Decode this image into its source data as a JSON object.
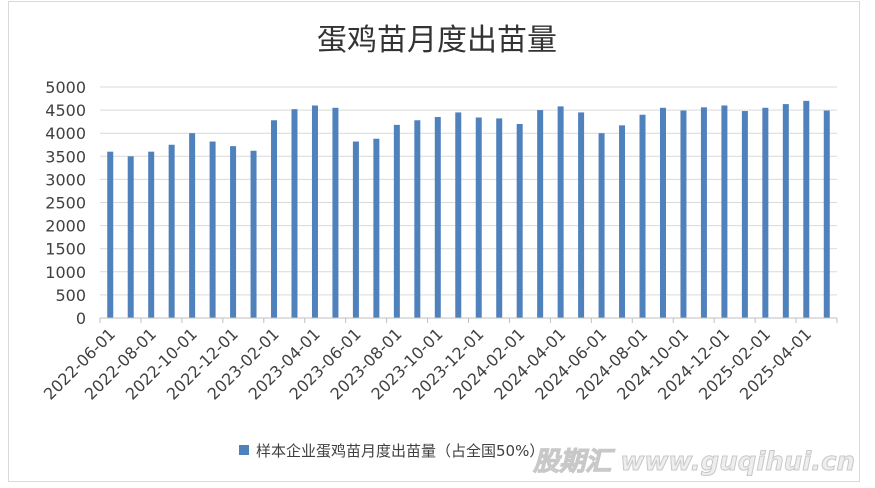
{
  "chart_data": {
    "type": "bar",
    "title": "蛋鸡苗月度出苗量",
    "xlabel": "",
    "ylabel": "",
    "ylim": [
      0,
      5000
    ],
    "yticks": [
      0,
      500,
      1000,
      1500,
      2000,
      2500,
      3000,
      3500,
      4000,
      4500,
      5000
    ],
    "xtick_labels": [
      "2022-06-01",
      "2022-08-01",
      "2022-10-01",
      "2022-12-01",
      "2023-02-01",
      "2023-04-01",
      "2023-06-01",
      "2023-08-01",
      "2023-10-01",
      "2023-12-01",
      "2024-02-01",
      "2024-04-01",
      "2024-06-01",
      "2024-08-01",
      "2024-10-01",
      "2024-12-01",
      "2025-02-01",
      "2025-04-01"
    ],
    "categories": [
      "2022-06-01",
      "2022-07-01",
      "2022-08-01",
      "2022-09-01",
      "2022-10-01",
      "2022-11-01",
      "2022-12-01",
      "2023-01-01",
      "2023-02-01",
      "2023-03-01",
      "2023-04-01",
      "2023-05-01",
      "2023-06-01",
      "2023-07-01",
      "2023-08-01",
      "2023-09-01",
      "2023-10-01",
      "2023-11-01",
      "2023-12-01",
      "2024-01-01",
      "2024-02-01",
      "2024-03-01",
      "2024-04-01",
      "2024-05-01",
      "2024-06-01",
      "2024-07-01",
      "2024-08-01",
      "2024-09-01",
      "2024-10-01",
      "2024-11-01",
      "2024-12-01",
      "2025-01-01",
      "2025-02-01",
      "2025-03-01",
      "2025-04-01",
      "2025-05-01"
    ],
    "series": [
      {
        "name": "样本企业蛋鸡苗月度出苗量（占全国50%）",
        "color": "#4f81bd",
        "values": [
          3600,
          3500,
          3600,
          3750,
          4000,
          3820,
          3720,
          3620,
          4280,
          4520,
          4600,
          4550,
          3820,
          3880,
          4180,
          4280,
          4350,
          4450,
          4340,
          4320,
          4200,
          4500,
          4580,
          4450,
          4000,
          4170,
          4400,
          4550,
          4490,
          4560,
          4600,
          4480,
          4550,
          4630,
          4700,
          4490
        ]
      }
    ],
    "legend_position": "bottom",
    "grid": true
  },
  "watermark": "股期汇 www.guqihui.cn"
}
